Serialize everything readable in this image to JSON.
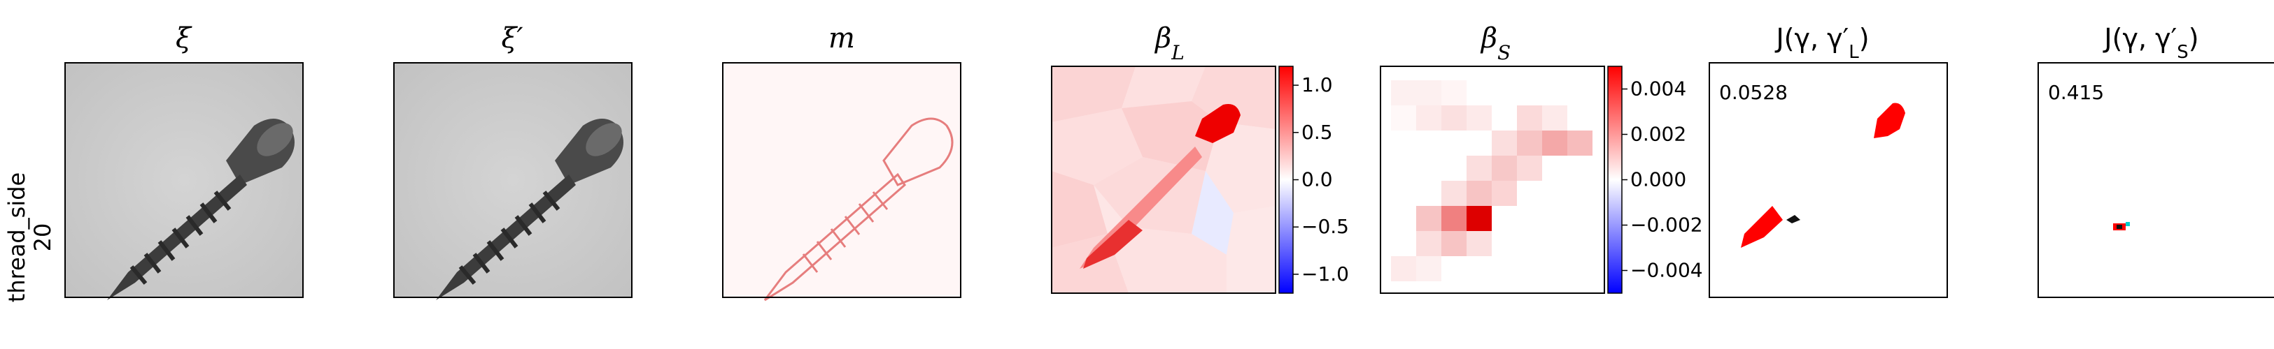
{
  "row_label": {
    "line1": "thread_side",
    "line2": "20"
  },
  "panels": [
    {
      "id": "xi",
      "title": "ξ"
    },
    {
      "id": "xi_prime",
      "title": "ξ′"
    },
    {
      "id": "m",
      "title": "m"
    },
    {
      "id": "beta_L",
      "title": "β",
      "title_sub": "L"
    },
    {
      "id": "beta_S",
      "title": "β",
      "title_sub": "S"
    },
    {
      "id": "J_L",
      "title": "J(γ, γ′",
      "title_sub": "L",
      "title_end": ")",
      "score": "0.0528"
    },
    {
      "id": "J_S",
      "title": "J(γ, γ′",
      "title_sub": "S",
      "title_end": ")",
      "score": "0.415"
    }
  ],
  "colorbars": {
    "beta_L": {
      "ticks": [
        "1.0",
        "0.5",
        "0.0",
        "−0.5",
        "−1.0"
      ],
      "values": [
        1.0,
        0.5,
        0.0,
        -0.5,
        -1.0
      ],
      "min": -1.2,
      "max": 1.2
    },
    "beta_S": {
      "ticks": [
        "0.004",
        "0.002",
        "0.000",
        "−0.002",
        "−0.004"
      ],
      "values": [
        0.004,
        0.002,
        0.0,
        -0.002,
        -0.004
      ],
      "min": -0.005,
      "max": 0.005
    }
  },
  "colors": {
    "positive": "#ff0000",
    "negative": "#0000ff",
    "neutral": "#ffffff",
    "background_gray": "#cfcfcf",
    "screw_dark": "#3a3a3a"
  }
}
